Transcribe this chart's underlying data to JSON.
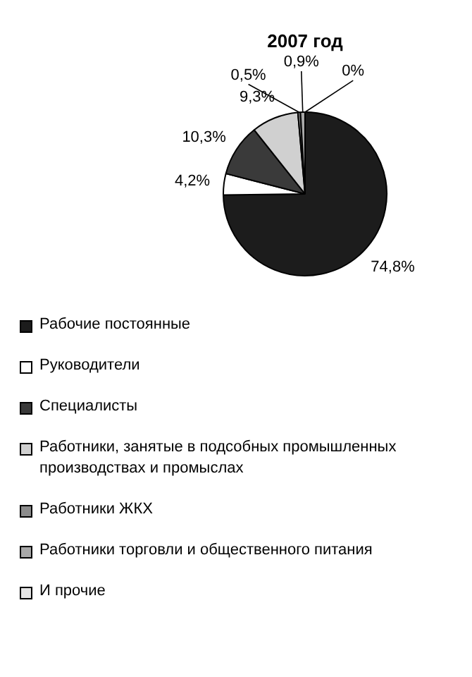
{
  "chart_data": {
    "type": "pie",
    "title": "2007 год",
    "categories": [
      "Рабочие постоянные",
      "Руководители",
      "Специалисты",
      "Работники, занятые в подсобных промышленных производствах и промыслах",
      "Работники ЖКХ",
      "Работники торговли и общественного питания",
      "И прочие"
    ],
    "values": [
      74.8,
      4.2,
      10.3,
      9.3,
      0.5,
      0.9,
      0
    ],
    "value_labels": [
      "74,8%",
      "4,2%",
      "10,3%",
      "9,3%",
      "0,5%",
      "0,9%",
      "0%"
    ],
    "colors": [
      "#1c1c1c",
      "#ffffff",
      "#3a3a3a",
      "#d0d0d0",
      "#8c8c8c",
      "#a8a8a8",
      "#e4e4e4"
    ],
    "legend": "bottom"
  }
}
